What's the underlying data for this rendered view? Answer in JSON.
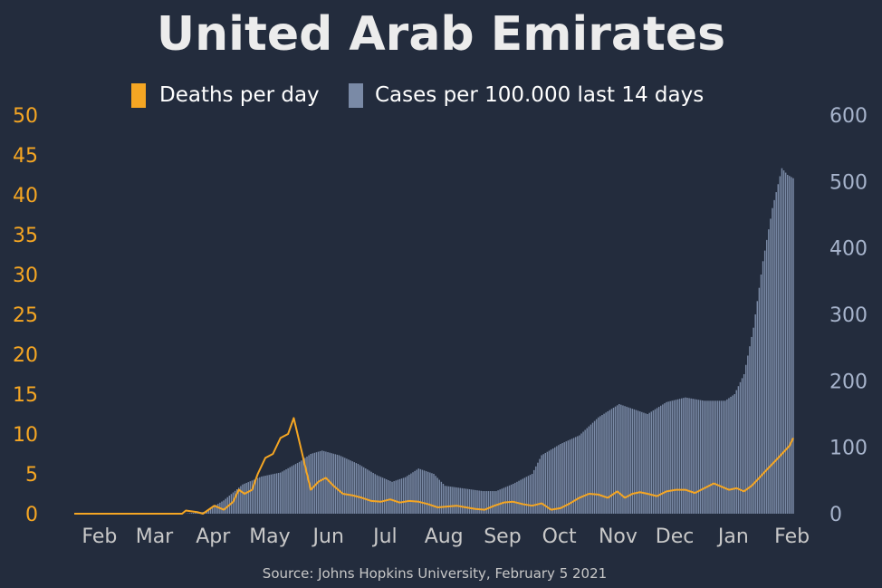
{
  "chart_data": {
    "type": "bar+line",
    "title": "United Arab Emirates",
    "source": "Source: Johns Hopkins University, February 5 2021",
    "legend": {
      "placement": "top-center",
      "entries": [
        {
          "label": "Deaths per day",
          "color": "#f5a623"
        },
        {
          "label": "Cases per 100.000 last 14 days",
          "color": "#7a8aa6"
        }
      ]
    },
    "x_axis": {
      "ticks": [
        "Feb",
        "Mar",
        "Apr",
        "May",
        "Jun",
        "Jul",
        "Aug",
        "Sep",
        "Oct",
        "Nov",
        "Dec",
        "Jan",
        "Feb"
      ],
      "range": [
        "2020-01-22",
        "2021-02-05"
      ]
    },
    "y_left": {
      "ticks": [
        "0",
        "5",
        "10",
        "15",
        "20",
        "25",
        "30",
        "35",
        "40",
        "45",
        "50"
      ],
      "ylim": [
        0,
        50
      ],
      "color": "#f5a623"
    },
    "y_right": {
      "ticks": [
        "0",
        "100",
        "200",
        "300",
        "400",
        "500",
        "600"
      ],
      "ylim": [
        0,
        600
      ],
      "color": "#a7b4cc"
    },
    "series": [
      {
        "name": "Cases per 100.000 last 14 days",
        "kind": "bar",
        "color": "#7a8aa6",
        "points": [
          [
            "2020-01-22",
            0
          ],
          [
            "2020-03-20",
            0
          ],
          [
            "2020-03-31",
            3
          ],
          [
            "2020-04-10",
            20
          ],
          [
            "2020-04-20",
            44
          ],
          [
            "2020-04-30",
            56
          ],
          [
            "2020-05-10",
            62
          ],
          [
            "2020-05-20",
            78
          ],
          [
            "2020-05-26",
            90
          ],
          [
            "2020-06-01",
            95
          ],
          [
            "2020-06-10",
            88
          ],
          [
            "2020-06-20",
            75
          ],
          [
            "2020-06-30",
            58
          ],
          [
            "2020-07-08",
            48
          ],
          [
            "2020-07-15",
            55
          ],
          [
            "2020-07-22",
            68
          ],
          [
            "2020-07-30",
            60
          ],
          [
            "2020-08-05",
            42
          ],
          [
            "2020-08-15",
            38
          ],
          [
            "2020-08-25",
            34
          ],
          [
            "2020-09-01",
            34
          ],
          [
            "2020-09-10",
            45
          ],
          [
            "2020-09-20",
            60
          ],
          [
            "2020-09-25",
            88
          ],
          [
            "2020-10-05",
            105
          ],
          [
            "2020-10-15",
            118
          ],
          [
            "2020-10-25",
            145
          ],
          [
            "2020-11-05",
            165
          ],
          [
            "2020-11-10",
            160
          ],
          [
            "2020-11-20",
            150
          ],
          [
            "2020-11-30",
            168
          ],
          [
            "2020-12-10",
            175
          ],
          [
            "2020-12-20",
            170
          ],
          [
            "2020-12-31",
            170
          ],
          [
            "2021-01-05",
            180
          ],
          [
            "2021-01-10",
            210
          ],
          [
            "2021-01-15",
            280
          ],
          [
            "2021-01-20",
            380
          ],
          [
            "2021-01-25",
            460
          ],
          [
            "2021-01-30",
            520
          ],
          [
            "2021-02-02",
            510
          ],
          [
            "2021-02-05",
            505
          ]
        ]
      },
      {
        "name": "Deaths per day",
        "kind": "line",
        "color": "#f5a623",
        "points": [
          [
            "2020-01-22",
            0
          ],
          [
            "2020-03-19",
            0
          ],
          [
            "2020-03-21",
            0.4
          ],
          [
            "2020-03-27",
            0.2
          ],
          [
            "2020-03-30",
            0
          ],
          [
            "2020-04-05",
            1
          ],
          [
            "2020-04-10",
            0.5
          ],
          [
            "2020-04-15",
            1.5
          ],
          [
            "2020-04-18",
            3
          ],
          [
            "2020-04-21",
            2.5
          ],
          [
            "2020-04-25",
            3
          ],
          [
            "2020-04-28",
            5
          ],
          [
            "2020-05-02",
            7
          ],
          [
            "2020-05-06",
            7.5
          ],
          [
            "2020-05-10",
            9.5
          ],
          [
            "2020-05-14",
            10
          ],
          [
            "2020-05-17",
            12
          ],
          [
            "2020-05-22",
            7
          ],
          [
            "2020-05-26",
            3
          ],
          [
            "2020-05-30",
            4
          ],
          [
            "2020-06-03",
            4.5
          ],
          [
            "2020-06-07",
            3.5
          ],
          [
            "2020-06-12",
            2.5
          ],
          [
            "2020-06-17",
            2.3
          ],
          [
            "2020-06-22",
            2
          ],
          [
            "2020-06-27",
            1.6
          ],
          [
            "2020-07-02",
            1.5
          ],
          [
            "2020-07-07",
            1.8
          ],
          [
            "2020-07-12",
            1.4
          ],
          [
            "2020-07-17",
            1.6
          ],
          [
            "2020-07-22",
            1.5
          ],
          [
            "2020-07-27",
            1.2
          ],
          [
            "2020-08-01",
            0.8
          ],
          [
            "2020-08-06",
            0.9
          ],
          [
            "2020-08-11",
            1
          ],
          [
            "2020-08-16",
            0.8
          ],
          [
            "2020-08-21",
            0.6
          ],
          [
            "2020-08-26",
            0.5
          ],
          [
            "2020-08-31",
            1
          ],
          [
            "2020-09-05",
            1.4
          ],
          [
            "2020-09-10",
            1.5
          ],
          [
            "2020-09-15",
            1.2
          ],
          [
            "2020-09-20",
            1
          ],
          [
            "2020-09-25",
            1.3
          ],
          [
            "2020-09-30",
            0.5
          ],
          [
            "2020-10-05",
            0.7
          ],
          [
            "2020-10-10",
            1.3
          ],
          [
            "2020-10-15",
            2
          ],
          [
            "2020-10-20",
            2.5
          ],
          [
            "2020-10-25",
            2.4
          ],
          [
            "2020-10-30",
            2
          ],
          [
            "2020-11-04",
            2.8
          ],
          [
            "2020-11-08",
            2
          ],
          [
            "2020-11-12",
            2.5
          ],
          [
            "2020-11-16",
            2.7
          ],
          [
            "2020-11-20",
            2.5
          ],
          [
            "2020-11-25",
            2.2
          ],
          [
            "2020-11-30",
            2.8
          ],
          [
            "2020-12-05",
            3
          ],
          [
            "2020-12-10",
            3
          ],
          [
            "2020-12-15",
            2.6
          ],
          [
            "2020-12-20",
            3.2
          ],
          [
            "2020-12-25",
            3.8
          ],
          [
            "2020-12-28",
            3.5
          ],
          [
            "2021-01-02",
            3
          ],
          [
            "2021-01-06",
            3.2
          ],
          [
            "2021-01-10",
            2.8
          ],
          [
            "2021-01-14",
            3.5
          ],
          [
            "2021-01-18",
            4.5
          ],
          [
            "2021-01-22",
            5.5
          ],
          [
            "2021-01-26",
            6.5
          ],
          [
            "2021-01-30",
            7.5
          ],
          [
            "2021-02-03",
            8.5
          ],
          [
            "2021-02-05",
            9.5
          ]
        ]
      }
    ]
  }
}
